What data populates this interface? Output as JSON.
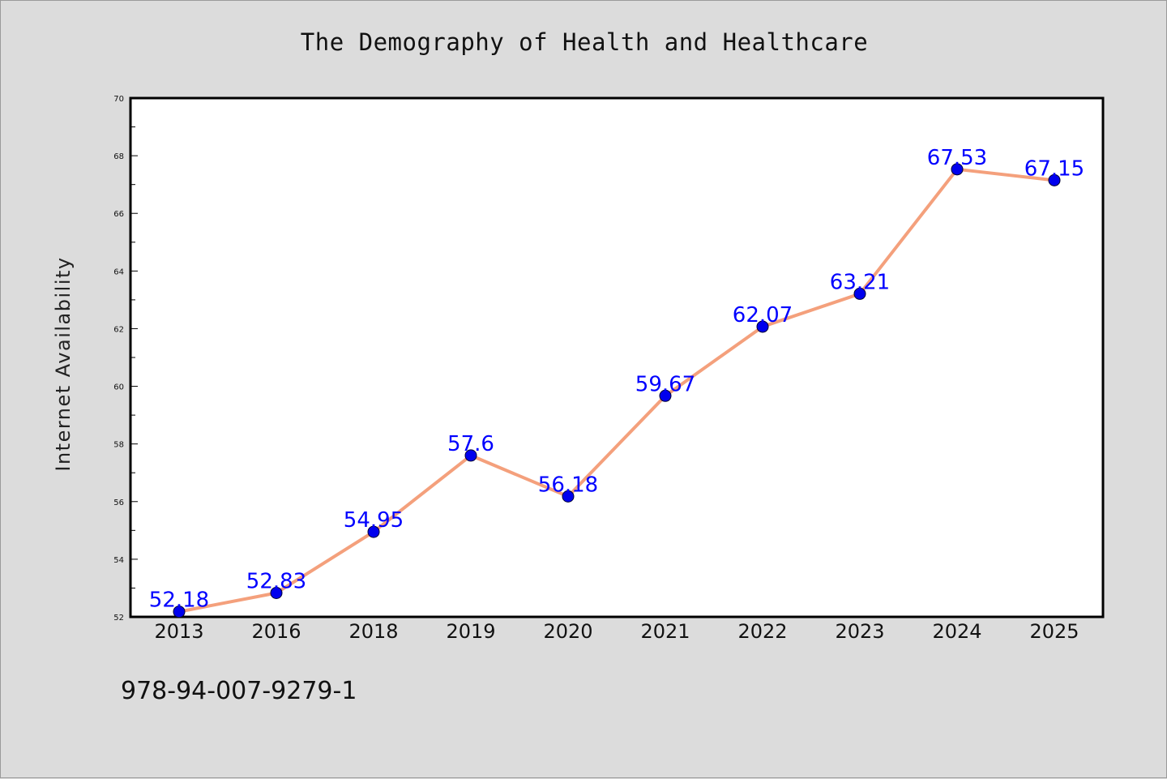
{
  "chart_data": {
    "type": "line",
    "title": "The Demography of Health and Healthcare",
    "xlabel": "",
    "ylabel": "Internet Availability",
    "categories": [
      "2013",
      "2016",
      "2018",
      "2019",
      "2020",
      "2021",
      "2022",
      "2023",
      "2024",
      "2025"
    ],
    "series": [
      {
        "values": [
          52.18,
          52.83,
          54.95,
          57.6,
          56.18,
          59.67,
          62.07,
          63.21,
          67.53,
          67.15
        ]
      }
    ],
    "data_labels": [
      "52.18",
      "52.83",
      "54.95",
      "57.6",
      "56.18",
      "59.67",
      "62.07",
      "63.21",
      "67.53",
      "67.15"
    ],
    "ylim": [
      52,
      70
    ],
    "yticks": [
      "52",
      "54",
      "56",
      "58",
      "60",
      "62",
      "64",
      "66",
      "68",
      "70"
    ],
    "grid": false,
    "legend": "none",
    "colors": {
      "line": "#f4a07c",
      "marker": "#0000ee",
      "label": "#0000ff",
      "plot_background": "#ffffff",
      "figure_background": "#dcdcdc"
    }
  },
  "footer_note": "978-94-007-9279-1"
}
